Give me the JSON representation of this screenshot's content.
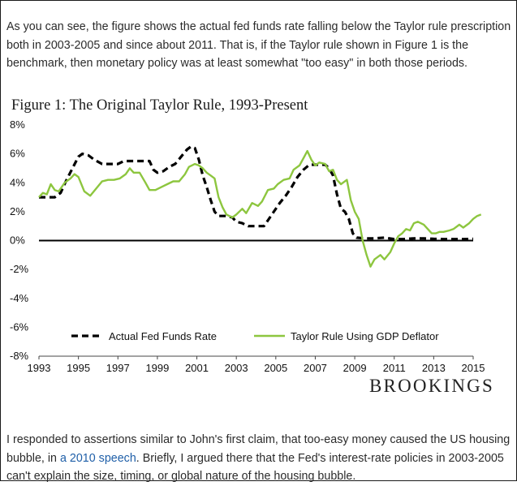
{
  "article": {
    "paragraph_top": "As you can see, the figure shows the actual fed funds rate falling below the Taylor rule prescription both in 2003-2005 and since about 2011. That is, if the Taylor rule shown in Figure 1 is the benchmark, then monetary policy was at least somewhat \"too easy\" in both those periods.",
    "paragraph_bottom_before_link": "I responded to assertions similar to John's first claim, that too-easy money caused the US housing bubble, in ",
    "paragraph_bottom_link": "a 2010 speech",
    "paragraph_bottom_after_link": ". Briefly, I argued there that the Fed's interest-rate policies in 2003-2005 can't explain the size, timing, or global nature of the housing bubble.",
    "link_color": "#1f5fa8"
  },
  "branding": {
    "logo_text": "BROOKINGS"
  },
  "chart_data": {
    "type": "line",
    "title": "Figure 1: The Original Taylor Rule, 1993-Present",
    "xlabel": "",
    "ylabel": "",
    "xlim": [
      1993,
      2015
    ],
    "ylim": [
      -8,
      8
    ],
    "x_ticks": [
      "1993",
      "1995",
      "1997",
      "1999",
      "2001",
      "2003",
      "2005",
      "2007",
      "2009",
      "2011",
      "2013",
      "2015"
    ],
    "y_ticks": [
      "8%",
      "6%",
      "4%",
      "2%",
      "0%",
      "-2%",
      "-4%",
      "-6%",
      "-8%"
    ],
    "grid": false,
    "zero_line": true,
    "legend": "bottom-inside",
    "series": [
      {
        "name": "Actual Fed Funds Rate",
        "style": "dashed",
        "color": "#000000",
        "points": [
          [
            1993.0,
            3.0
          ],
          [
            1993.5,
            3.0
          ],
          [
            1993.8,
            3.0
          ],
          [
            1994.1,
            3.3
          ],
          [
            1994.4,
            4.2
          ],
          [
            1994.7,
            5.0
          ],
          [
            1995.0,
            5.8
          ],
          [
            1995.2,
            6.0
          ],
          [
            1995.5,
            5.9
          ],
          [
            1995.8,
            5.6
          ],
          [
            1996.2,
            5.3
          ],
          [
            1996.7,
            5.3
          ],
          [
            1997.0,
            5.3
          ],
          [
            1997.3,
            5.5
          ],
          [
            1997.8,
            5.5
          ],
          [
            1998.3,
            5.5
          ],
          [
            1998.6,
            5.5
          ],
          [
            1998.8,
            4.9
          ],
          [
            1999.0,
            4.7
          ],
          [
            1999.3,
            4.8
          ],
          [
            1999.6,
            5.1
          ],
          [
            1999.9,
            5.3
          ],
          [
            2000.2,
            5.8
          ],
          [
            2000.5,
            6.3
          ],
          [
            2000.7,
            6.5
          ],
          [
            2000.9,
            6.4
          ],
          [
            2001.1,
            5.6
          ],
          [
            2001.3,
            4.5
          ],
          [
            2001.5,
            3.7
          ],
          [
            2001.7,
            2.8
          ],
          [
            2001.9,
            2.0
          ],
          [
            2002.1,
            1.7
          ],
          [
            2002.5,
            1.7
          ],
          [
            2002.8,
            1.6
          ],
          [
            2003.0,
            1.3
          ],
          [
            2003.3,
            1.2
          ],
          [
            2003.6,
            1.0
          ],
          [
            2004.0,
            1.0
          ],
          [
            2004.4,
            1.0
          ],
          [
            2004.6,
            1.4
          ],
          [
            2004.9,
            2.0
          ],
          [
            2005.2,
            2.6
          ],
          [
            2005.5,
            3.1
          ],
          [
            2005.8,
            3.7
          ],
          [
            2006.1,
            4.4
          ],
          [
            2006.4,
            4.9
          ],
          [
            2006.7,
            5.25
          ],
          [
            2007.0,
            5.25
          ],
          [
            2007.5,
            5.25
          ],
          [
            2007.7,
            5.0
          ],
          [
            2007.9,
            4.5
          ],
          [
            2008.1,
            3.2
          ],
          [
            2008.3,
            2.2
          ],
          [
            2008.5,
            2.0
          ],
          [
            2008.7,
            1.5
          ],
          [
            2008.9,
            0.5
          ],
          [
            2009.1,
            0.2
          ],
          [
            2009.5,
            0.15
          ],
          [
            2010.0,
            0.15
          ],
          [
            2010.5,
            0.2
          ],
          [
            2011.0,
            0.1
          ],
          [
            2011.5,
            0.1
          ],
          [
            2012.0,
            0.15
          ],
          [
            2012.5,
            0.15
          ],
          [
            2013.0,
            0.12
          ],
          [
            2013.5,
            0.1
          ],
          [
            2014.0,
            0.1
          ],
          [
            2014.5,
            0.1
          ],
          [
            2015.0,
            0.12
          ]
        ]
      },
      {
        "name": "Taylor Rule Using GDP Deflator",
        "style": "solid",
        "color": "#8dc63f",
        "points": [
          [
            1993.0,
            3.0
          ],
          [
            1993.2,
            3.3
          ],
          [
            1993.4,
            3.2
          ],
          [
            1993.6,
            3.9
          ],
          [
            1993.8,
            3.5
          ],
          [
            1994.0,
            3.4
          ],
          [
            1994.3,
            4.0
          ],
          [
            1994.6,
            4.3
          ],
          [
            1994.8,
            4.6
          ],
          [
            1995.0,
            4.4
          ],
          [
            1995.3,
            3.4
          ],
          [
            1995.6,
            3.1
          ],
          [
            1995.9,
            3.6
          ],
          [
            1996.2,
            4.1
          ],
          [
            1996.5,
            4.2
          ],
          [
            1996.8,
            4.2
          ],
          [
            1997.1,
            4.3
          ],
          [
            1997.4,
            4.6
          ],
          [
            1997.6,
            5.0
          ],
          [
            1997.8,
            4.7
          ],
          [
            1998.1,
            4.7
          ],
          [
            1998.4,
            4.0
          ],
          [
            1998.6,
            3.5
          ],
          [
            1998.9,
            3.5
          ],
          [
            1999.2,
            3.7
          ],
          [
            1999.5,
            3.9
          ],
          [
            1999.8,
            4.1
          ],
          [
            2000.1,
            4.1
          ],
          [
            2000.4,
            4.6
          ],
          [
            2000.6,
            5.1
          ],
          [
            2000.9,
            5.3
          ],
          [
            2001.1,
            5.2
          ],
          [
            2001.3,
            5.0
          ],
          [
            2001.5,
            4.7
          ],
          [
            2001.7,
            4.5
          ],
          [
            2001.9,
            4.3
          ],
          [
            2002.1,
            3.0
          ],
          [
            2002.3,
            2.3
          ],
          [
            2002.5,
            1.8
          ],
          [
            2002.8,
            1.6
          ],
          [
            2003.0,
            1.8
          ],
          [
            2003.3,
            2.2
          ],
          [
            2003.5,
            1.9
          ],
          [
            2003.8,
            2.6
          ],
          [
            2004.1,
            2.4
          ],
          [
            2004.3,
            2.7
          ],
          [
            2004.6,
            3.5
          ],
          [
            2004.9,
            3.6
          ],
          [
            2005.1,
            3.9
          ],
          [
            2005.4,
            4.2
          ],
          [
            2005.7,
            4.3
          ],
          [
            2005.9,
            4.9
          ],
          [
            2006.2,
            5.2
          ],
          [
            2006.4,
            5.7
          ],
          [
            2006.6,
            6.2
          ],
          [
            2006.8,
            5.6
          ],
          [
            2007.0,
            5.2
          ],
          [
            2007.2,
            5.4
          ],
          [
            2007.5,
            5.3
          ],
          [
            2007.7,
            4.8
          ],
          [
            2007.9,
            4.9
          ],
          [
            2008.1,
            4.2
          ],
          [
            2008.3,
            3.9
          ],
          [
            2008.6,
            4.2
          ],
          [
            2008.8,
            2.8
          ],
          [
            2009.0,
            2.0
          ],
          [
            2009.2,
            1.5
          ],
          [
            2009.4,
            0.0
          ],
          [
            2009.6,
            -1.0
          ],
          [
            2009.8,
            -1.8
          ],
          [
            2010.0,
            -1.3
          ],
          [
            2010.3,
            -1.0
          ],
          [
            2010.5,
            -1.3
          ],
          [
            2010.8,
            -0.8
          ],
          [
            2011.0,
            -0.2
          ],
          [
            2011.2,
            0.3
          ],
          [
            2011.4,
            0.5
          ],
          [
            2011.6,
            0.8
          ],
          [
            2011.8,
            0.7
          ],
          [
            2012.0,
            1.2
          ],
          [
            2012.2,
            1.3
          ],
          [
            2012.5,
            1.1
          ],
          [
            2012.7,
            0.8
          ],
          [
            2012.9,
            0.5
          ],
          [
            2013.1,
            0.5
          ],
          [
            2013.3,
            0.6
          ],
          [
            2013.5,
            0.6
          ],
          [
            2013.8,
            0.7
          ],
          [
            2014.0,
            0.8
          ],
          [
            2014.3,
            1.1
          ],
          [
            2014.5,
            0.9
          ],
          [
            2014.8,
            1.2
          ],
          [
            2015.0,
            1.5
          ],
          [
            2015.2,
            1.7
          ],
          [
            2015.4,
            1.8
          ]
        ]
      }
    ]
  }
}
